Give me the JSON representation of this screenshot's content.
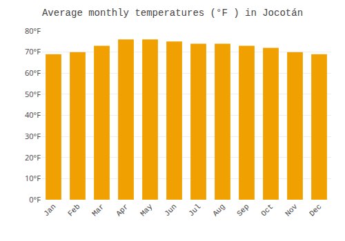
{
  "chart_data": {
    "type": "bar",
    "title": "Average monthly temperatures (°F ) in Jocotán",
    "categories": [
      "Jan",
      "Feb",
      "Mar",
      "Apr",
      "May",
      "Jun",
      "Jul",
      "Aug",
      "Sep",
      "Oct",
      "Nov",
      "Dec"
    ],
    "values": [
      69,
      70,
      73,
      76,
      76,
      75,
      74,
      74,
      73,
      72,
      70,
      69
    ],
    "color": "#F0A000",
    "ylim": [
      0,
      80
    ],
    "yticks": [
      {
        "value": 0,
        "label": "0°F"
      },
      {
        "value": 10,
        "label": "10°F"
      },
      {
        "value": 20,
        "label": "20°F"
      },
      {
        "value": 30,
        "label": "30°F"
      },
      {
        "value": 40,
        "label": "40°F"
      },
      {
        "value": 50,
        "label": "50°F"
      },
      {
        "value": 60,
        "label": "60°F"
      },
      {
        "value": 70,
        "label": "70°F"
      },
      {
        "value": 80,
        "label": "80°F"
      }
    ],
    "grid": true
  }
}
